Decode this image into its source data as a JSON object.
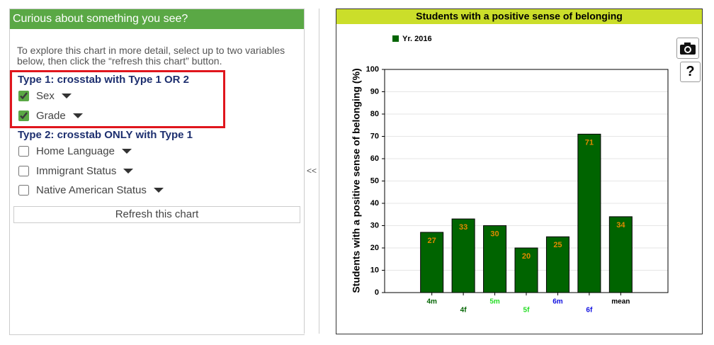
{
  "panel": {
    "header": "Curious about something you see?",
    "intro": "To explore this chart in more detail, select up to two variables below, then click the “refresh this chart” button.",
    "groups": [
      {
        "title": "Type 1: crosstab with Type 1 OR 2",
        "items": [
          {
            "label": "Sex",
            "checked": true
          },
          {
            "label": "Grade",
            "checked": true
          }
        ]
      },
      {
        "title": "Type 2: crosstab ONLY with Type 1",
        "items": [
          {
            "label": "Home Language",
            "checked": false
          },
          {
            "label": "Immigrant Status",
            "checked": false
          },
          {
            "label": "Native American Status",
            "checked": false
          }
        ]
      }
    ],
    "button": "Refresh this chart",
    "collapse": "<<",
    "help": "?"
  },
  "chart_data": {
    "type": "bar",
    "title": "Students with a positive sense of belonging",
    "y_label": "Students with a positive sense of belonging (%)",
    "categories": [
      "4m",
      "4f",
      "5m",
      "5f",
      "6m",
      "6f",
      "mean"
    ],
    "category_colors": [
      "#006400",
      "#006400",
      "#22dd22",
      "#22dd22",
      "#1010e0",
      "#1010e0",
      "#000000"
    ],
    "series": [
      {
        "name": "Yr. 2016",
        "color": "#006400",
        "values": [
          27,
          33,
          30,
          20,
          25,
          71,
          34
        ]
      }
    ],
    "ylim": [
      0,
      100
    ],
    "yticks": [
      0,
      10,
      20,
      30,
      40,
      50,
      60,
      70,
      80,
      90,
      100
    ],
    "grid": true,
    "legend": "top-left"
  }
}
